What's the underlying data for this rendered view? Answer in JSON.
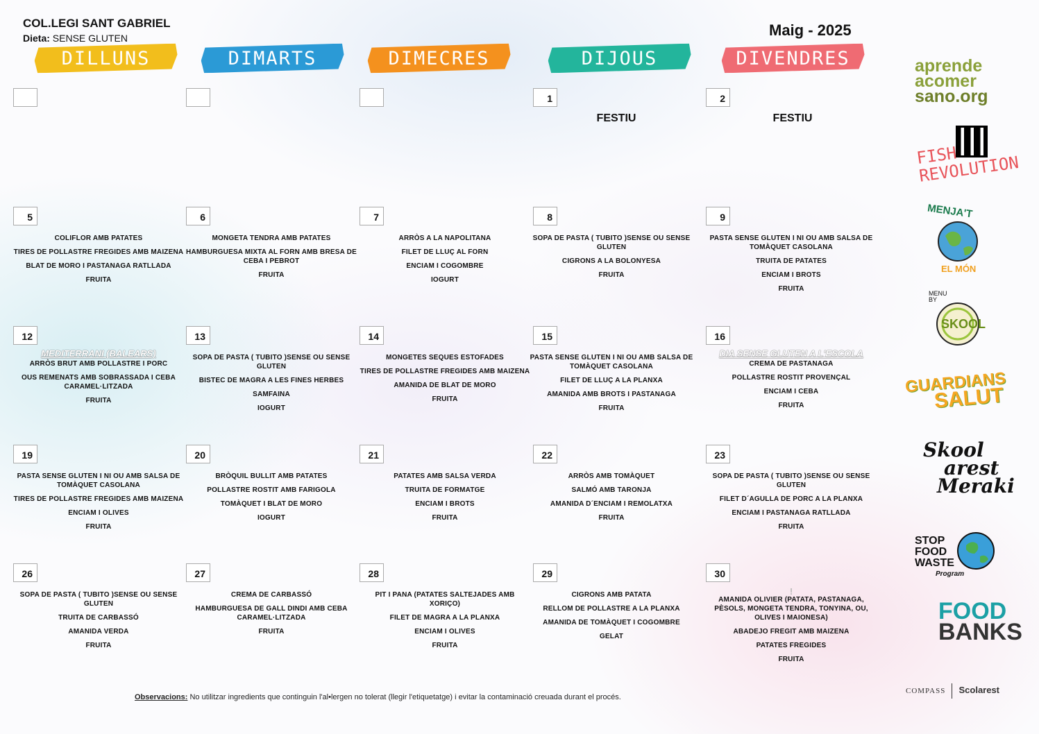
{
  "header": {
    "school": "COL.LEGI SANT GABRIEL",
    "diet_label": "Dieta:",
    "diet_value": "SENSE GLUTEN",
    "month": "Maig - 2025"
  },
  "weekdays": [
    {
      "label": "DILLUNS",
      "color": "#f2be1c"
    },
    {
      "label": "DIMARTS",
      "color": "#2b9ad6"
    },
    {
      "label": "DIMECRES",
      "color": "#f4911e"
    },
    {
      "label": "DIJOUS",
      "color": "#23b59c"
    },
    {
      "label": "DIVENDRES",
      "color": "#ef6b73"
    }
  ],
  "weeks": [
    [
      {
        "day": "",
        "dishes": []
      },
      {
        "day": "",
        "dishes": []
      },
      {
        "day": "",
        "dishes": []
      },
      {
        "day": "1",
        "festiu": "FESTIU",
        "dishes": []
      },
      {
        "day": "2",
        "festiu": "FESTIU",
        "dishes": []
      }
    ],
    [
      {
        "day": "5",
        "dishes": [
          "COLIFLOR AMB PATATES",
          "TIRES DE POLLASTRE FREGIDES AMB MAIZENA",
          "BLAT DE MORO I PASTANAGA RATLLADA",
          "FRUITA"
        ]
      },
      {
        "day": "6",
        "dishes": [
          "MONGETA TENDRA AMB PATATES",
          "HAMBURGUESA MIXTA AL FORN AMB BRESA DE CEBA I PEBROT",
          "FRUITA"
        ]
      },
      {
        "day": "7",
        "dishes": [
          "ARRÒS A LA NAPOLITANA",
          "FILET DE LLUÇ AL FORN",
          "ENCIAM I COGOMBRE",
          "IOGURT"
        ]
      },
      {
        "day": "8",
        "dishes": [
          "SOPA DE PASTA ( TUBITO )SENSE OU SENSE GLUTEN",
          "CIGRONS A LA BOLONYESA",
          "FRUITA"
        ]
      },
      {
        "day": "9",
        "dishes": [
          "PASTA SENSE GLUTEN I NI OU AMB SALSA DE TOMÀQUET CASOLANA",
          "TRUITA DE PATATES",
          "ENCIAM I BROTS",
          "FRUITA"
        ]
      }
    ],
    [
      {
        "day": "12",
        "special": "MEDITERRANI (BALEARS)",
        "dishes": [
          "ARRÒS BRUT AMB POLLASTRE I PORC",
          "OUS REMENATS AMB SOBRASSADA I CEBA CARAMEL·LITZADA",
          "FRUITA"
        ]
      },
      {
        "day": "13",
        "dishes": [
          "SOPA DE PASTA ( TUBITO )SENSE OU SENSE GLUTEN",
          "BISTEC DE MAGRA A LES FINES HERBES",
          "SAMFAINA",
          "IOGURT"
        ]
      },
      {
        "day": "14",
        "dishes": [
          "MONGETES SEQUES ESTOFADES",
          "TIRES DE POLLASTRE FREGIDES AMB MAIZENA",
          "AMANIDA DE BLAT DE MORO",
          "FRUITA"
        ]
      },
      {
        "day": "15",
        "dishes": [
          "PASTA SENSE GLUTEN I NI OU AMB SALSA DE TOMÀQUET CASOLANA",
          "FILET DE LLUÇ A LA PLANXA",
          "AMANIDA AMB BROTS I PASTANAGA",
          "FRUITA"
        ]
      },
      {
        "day": "16",
        "special": "DIA SENSE GLUTEN A L'ESCOLA",
        "dishes": [
          "CREMA DE PASTANAGA",
          "POLLASTRE ROSTIT PROVENÇAL",
          "ENCIAM I CEBA",
          "FRUITA"
        ]
      }
    ],
    [
      {
        "day": "19",
        "dishes": [
          "PASTA SENSE GLUTEN I NI OU AMB SALSA DE TOMÀQUET CASOLANA",
          "TIRES DE POLLASTRE FREGIDES AMB MAIZENA",
          "ENCIAM I OLIVES",
          "FRUITA"
        ]
      },
      {
        "day": "20",
        "dishes": [
          "BRÒQUIL BULLIT AMB PATATES",
          "POLLASTRE ROSTIT AMB FARIGOLA",
          "TOMÀQUET I BLAT DE MORO",
          "IOGURT"
        ]
      },
      {
        "day": "21",
        "dishes": [
          "PATATES AMB SALSA VERDA",
          "TRUITA DE FORMATGE",
          "ENCIAM I BROTS",
          "FRUITA"
        ]
      },
      {
        "day": "22",
        "dishes": [
          "ARRÒS AMB TOMÀQUET",
          "SALMÓ AMB TARONJA",
          "AMANIDA D´ENCIAM I REMOLATXA",
          "FRUITA"
        ]
      },
      {
        "day": "23",
        "dishes": [
          "SOPA DE PASTA ( TUBITO )SENSE OU SENSE GLUTEN",
          "FILET D´AGULLA DE PORC A LA PLANXA",
          "ENCIAM I PASTANAGA RATLLADA",
          "FRUITA"
        ]
      }
    ],
    [
      {
        "day": "26",
        "dishes": [
          "SOPA DE PASTA ( TUBITO )SENSE OU SENSE GLUTEN",
          "TRUITA DE CARBASSÓ",
          "AMANIDA VERDA",
          "FRUITA"
        ]
      },
      {
        "day": "27",
        "dishes": [
          "CREMA DE CARBASSÓ",
          "HAMBURGUESA DE GALL DINDI AMB CEBA CARAMEL·LITZADA",
          "FRUITA"
        ]
      },
      {
        "day": "28",
        "dishes": [
          "PIT I PANA (PATATES SALTEJADES AMB XORIÇO)",
          "FILET DE MAGRA A LA PLANXA",
          "ENCIAM I OLIVES",
          "FRUITA"
        ]
      },
      {
        "day": "29",
        "dishes": [
          "CIGRONS AMB PATATA",
          "RELLOM DE POLLASTRE A LA PLANXA",
          "AMANIDA DE TOMÀQUET I COGOMBRE",
          "GELAT"
        ]
      },
      {
        "day": "30",
        "special": "!",
        "dishes": [
          "AMANIDA OLIVIER (PATATA, PASTANAGA, PÈSOLS, MONGETA TENDRA, TONYINA, OU, OLIVES I MAIONESA)",
          "ABADEJO FREGIT AMB MAIZENA",
          "PATATES FREGIDES",
          "FRUITA"
        ]
      }
    ]
  ],
  "footer": {
    "obs_label": "Observacions:",
    "obs_text": "No utilitzar ingredients que continguin l'al•lergen no tolerat (llegir l'etiquetatge) i evitar la contaminació creuada durant el procés."
  },
  "logos": {
    "aprende": [
      "aprende",
      "acomer",
      "sano.org"
    ],
    "fish": [
      "FISH",
      "REVOLUTION"
    ],
    "menjat": [
      "MENJA'T",
      "EL MÓN"
    ],
    "skool_menu": [
      "MENU",
      "BY",
      "SKOOL"
    ],
    "guardians": [
      "GUARDIANS",
      "SALUT"
    ],
    "skoolarest": [
      "Skool",
      "arest",
      "Meraki"
    ],
    "stopwaste": [
      "STOP",
      "FOOD",
      "WASTE",
      "Program"
    ],
    "growfood": [
      "FOOD",
      "BANKS"
    ],
    "compass": "COMPASS",
    "scolarest": "Scolarest"
  }
}
